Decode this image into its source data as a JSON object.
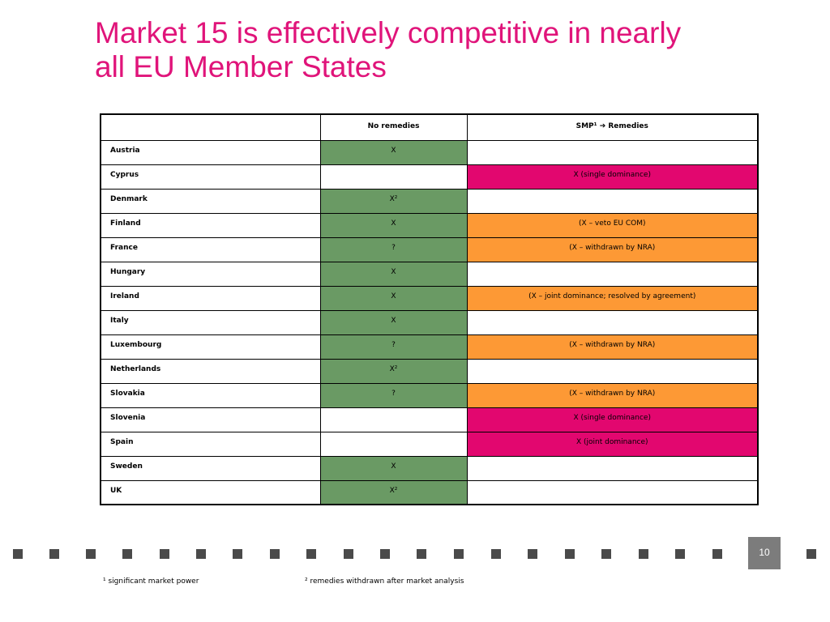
{
  "title": {
    "line1": "Market 15 is effectively competitive in nearly",
    "line2": "all EU Member States"
  },
  "table": {
    "headers": [
      "",
      "No remedies",
      "SMP¹ ➔ Remedies"
    ],
    "rows": [
      {
        "country": "Austria",
        "no_remedies": "X",
        "smp": "",
        "nr_color": "green",
        "smp_color": "white"
      },
      {
        "country": "Cyprus",
        "no_remedies": "",
        "smp": "X (single dominance)",
        "nr_color": "white",
        "smp_color": "magenta"
      },
      {
        "country": "Denmark",
        "no_remedies": "X²",
        "smp": "",
        "nr_color": "green",
        "smp_color": "white"
      },
      {
        "country": "Finland",
        "no_remedies": "X",
        "smp": "(X – veto EU COM)",
        "nr_color": "green",
        "smp_color": "orange"
      },
      {
        "country": "France",
        "no_remedies": "?",
        "smp": "(X – withdrawn by NRA)",
        "nr_color": "green",
        "smp_color": "orange"
      },
      {
        "country": "Hungary",
        "no_remedies": "X",
        "smp": "",
        "nr_color": "green",
        "smp_color": "white"
      },
      {
        "country": "Ireland",
        "no_remedies": "X",
        "smp": "(X – joint dominance; resolved by agreement)",
        "nr_color": "green",
        "smp_color": "orange"
      },
      {
        "country": "Italy",
        "no_remedies": "X",
        "smp": "",
        "nr_color": "green",
        "smp_color": "white"
      },
      {
        "country": "Luxembourg",
        "no_remedies": "?",
        "smp": "(X – withdrawn by NRA)",
        "nr_color": "green",
        "smp_color": "orange"
      },
      {
        "country": "Netherlands",
        "no_remedies": "X²",
        "smp": "",
        "nr_color": "green",
        "smp_color": "white"
      },
      {
        "country": "Slovakia",
        "no_remedies": "?",
        "smp": "(X – withdrawn by NRA)",
        "nr_color": "green",
        "smp_color": "orange"
      },
      {
        "country": "Slovenia",
        "no_remedies": "",
        "smp": "X (single dominance)",
        "nr_color": "white",
        "smp_color": "magenta"
      },
      {
        "country": "Spain",
        "no_remedies": "",
        "smp": "X (joint dominance)",
        "nr_color": "white",
        "smp_color": "magenta"
      },
      {
        "country": "Sweden",
        "no_remedies": "X",
        "smp": "",
        "nr_color": "green",
        "smp_color": "white"
      },
      {
        "country": "UK",
        "no_remedies": "X²",
        "smp": "",
        "nr_color": "green",
        "smp_color": "white"
      }
    ]
  },
  "colors": {
    "title": "#e0147a",
    "green": "#6a9a64",
    "magenta": "#e2076f",
    "orange": "#fd9935"
  },
  "page_number": "10",
  "footnotes": {
    "note1": "¹ significant market power",
    "note2": "² remedies withdrawn after market analysis"
  }
}
